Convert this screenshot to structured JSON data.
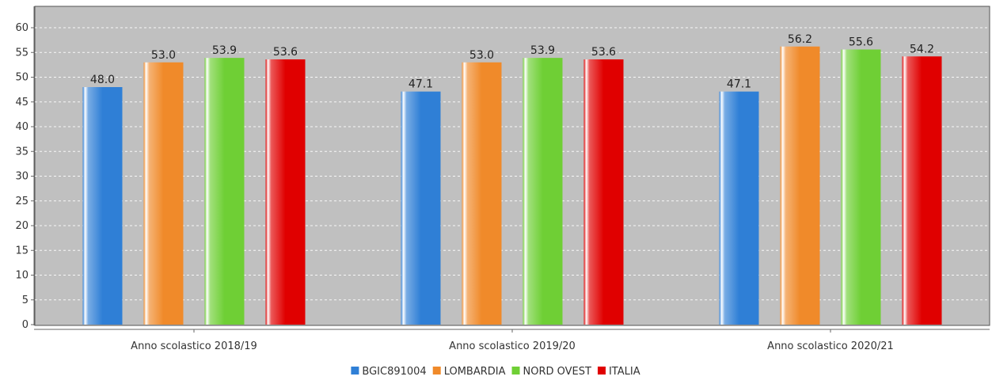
{
  "chart_data": {
    "type": "bar",
    "categories": [
      "Anno scolastico 2018/19",
      "Anno scolastico 2019/20",
      "Anno scolastico 2020/21"
    ],
    "series": [
      {
        "name": "BGIC891004",
        "color": "#2f7fd6",
        "values": [
          48.0,
          47.1,
          47.1
        ]
      },
      {
        "name": "LOMBARDIA",
        "color": "#f08a2a",
        "values": [
          53.0,
          53.0,
          56.2
        ]
      },
      {
        "name": "NORD OVEST",
        "color": "#6fcf35",
        "values": [
          53.9,
          53.9,
          55.6
        ]
      },
      {
        "name": "ITALIA",
        "color": "#e00000",
        "values": [
          53.6,
          53.6,
          54.2
        ]
      }
    ],
    "yticks": [
      "0",
      "5",
      "10",
      "15",
      "20",
      "25",
      "30",
      "35",
      "40",
      "45",
      "50",
      "55",
      "60"
    ],
    "ylim": [
      0,
      60
    ],
    "grid": true,
    "plot_background": "#c0c0c0",
    "legend_position": "bottom"
  }
}
